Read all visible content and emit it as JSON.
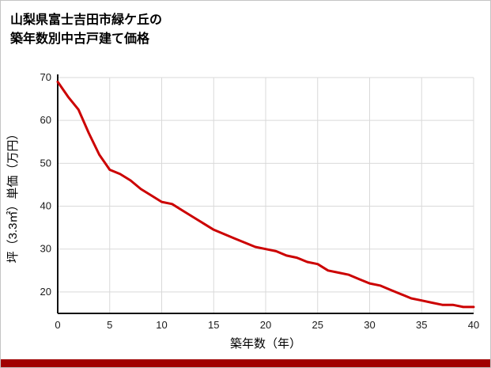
{
  "title": {
    "line1": "山梨県富士吉田市緑ケ丘の",
    "line2": "築年数別中古戸建て価格"
  },
  "chart_data": {
    "type": "line",
    "title": "山梨県富士吉田市緑ケ丘の築年数別中古戸建て価格",
    "xlabel": "築年数（年）",
    "ylabel": "坪（3.3㎡）単価（万円）",
    "x": [
      0,
      1,
      2,
      3,
      4,
      5,
      6,
      7,
      8,
      9,
      10,
      11,
      12,
      13,
      14,
      15,
      16,
      17,
      18,
      19,
      20,
      21,
      22,
      23,
      24,
      25,
      26,
      27,
      28,
      29,
      30,
      31,
      32,
      33,
      34,
      35,
      36,
      37,
      38,
      39,
      40
    ],
    "values": [
      69,
      65.5,
      62.5,
      57,
      52,
      48.5,
      47.5,
      46,
      44,
      42.5,
      41,
      40.5,
      39,
      37.5,
      36,
      34.5,
      33.5,
      32.5,
      31.5,
      30.5,
      30,
      29.5,
      28.5,
      28,
      27,
      26.5,
      25,
      24.5,
      24,
      23,
      22,
      21.5,
      20.5,
      19.5,
      18.5,
      18,
      17.5,
      17,
      17,
      16.5,
      16.5
    ],
    "xlim": [
      0,
      40
    ],
    "ylim": [
      15,
      70
    ],
    "x_ticks": [
      0,
      5,
      10,
      15,
      20,
      25,
      30,
      35,
      40
    ],
    "y_ticks": [
      20,
      30,
      40,
      50,
      60,
      70
    ],
    "grid": true,
    "legend": false,
    "line_color": "#cc0000"
  },
  "colors": {
    "line": "#cc0000",
    "footer": "#a00000",
    "grid": "#d9d9d9",
    "axis": "#111111",
    "tick_text": "#1a1a1a"
  }
}
